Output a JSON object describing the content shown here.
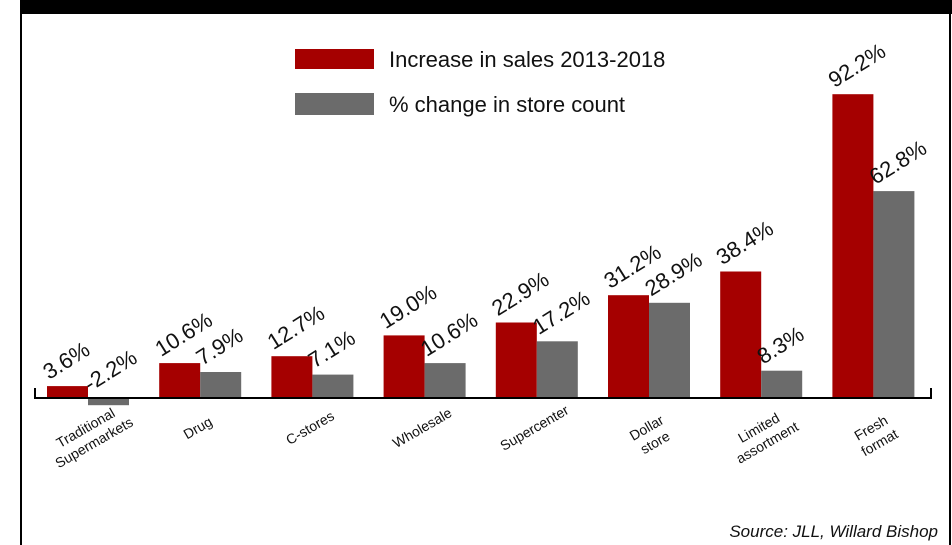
{
  "chart_data": {
    "type": "bar",
    "title": "",
    "xlabel": "",
    "ylabel": "",
    "ylim": [
      -5,
      100
    ],
    "grid": false,
    "legend_position": "top-center",
    "categories": [
      [
        "Traditional",
        "Supermarkets"
      ],
      [
        "Drug"
      ],
      [
        "C-stores"
      ],
      [
        "Wholesale"
      ],
      [
        "Supercenter"
      ],
      [
        "Dollar",
        "store"
      ],
      [
        "Limited",
        "assortment"
      ],
      [
        "Fresh",
        "format"
      ]
    ],
    "series": [
      {
        "name": "Increase in sales 2013-2018",
        "color": "#a50000",
        "values": [
          3.6,
          10.6,
          12.7,
          19.0,
          22.9,
          31.2,
          38.4,
          92.2
        ],
        "labels": [
          "3.6%",
          "10.6%",
          "12.7%",
          "19.0%",
          "22.9%",
          "31.2%",
          "38.4%",
          "92.2%"
        ]
      },
      {
        "name": "% change in store count",
        "color": "#6b6b6b",
        "values": [
          -2.2,
          7.9,
          7.1,
          10.6,
          17.2,
          28.9,
          8.3,
          62.8
        ],
        "labels": [
          "-2.2%",
          "7.9%",
          "7.1%",
          "10.6%",
          "17.2%",
          "28.9%",
          "8.3%",
          "62.8%"
        ]
      }
    ],
    "source": "Source: JLL, Willard Bishop"
  }
}
